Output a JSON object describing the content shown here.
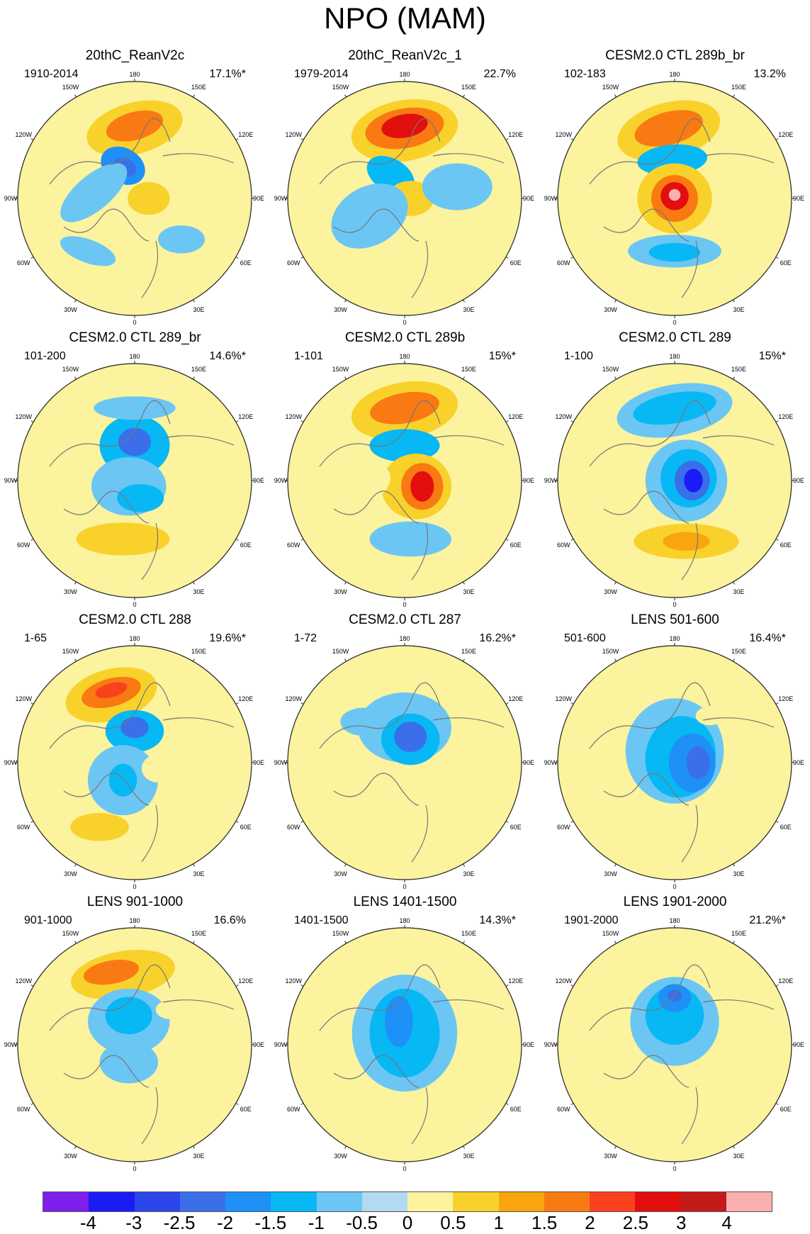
{
  "title": "NPO (MAM)",
  "lon_labels": [
    "180",
    "150E",
    "120E",
    "90E",
    "60E",
    "30E",
    "0",
    "30W",
    "60W",
    "90W",
    "120W",
    "150W"
  ],
  "colorbar": {
    "colors": [
      "#7f1fee",
      "#1b1bf5",
      "#2b46e8",
      "#3a6fe9",
      "#1e90f7",
      "#07b8f5",
      "#6bc6f4",
      "#b2daf1",
      "#fbf39d",
      "#f9d12b",
      "#f9a50e",
      "#f97a12",
      "#f9411e",
      "#e30e0e",
      "#c41a1a",
      "#fbb0b0"
    ],
    "ticks": [
      "-4",
      "-3",
      "-2.5",
      "-2",
      "-1.5",
      "-1",
      "-0.5",
      "0",
      "0.5",
      "1",
      "1.5",
      "2",
      "2.5",
      "3",
      "4"
    ]
  },
  "panels": [
    {
      "title": "20thC_ReanV2c",
      "period": "1910-2014",
      "pct": "17.1%*",
      "blobs": [
        [
          0,
          -0.6,
          0.42,
          0.22,
          -15,
          2
        ],
        [
          0,
          -0.62,
          0.25,
          0.12,
          -15,
          4
        ],
        [
          -0.1,
          -0.28,
          0.2,
          0.15,
          30,
          -3
        ],
        [
          -0.08,
          -0.27,
          0.1,
          0.07,
          30,
          -4
        ],
        [
          -0.35,
          -0.05,
          0.35,
          0.15,
          -40,
          -1
        ],
        [
          0.12,
          0.0,
          0.18,
          0.14,
          0,
          2
        ],
        [
          0.05,
          0.3,
          0.14,
          0.1,
          0,
          1
        ],
        [
          -0.4,
          0.45,
          0.25,
          0.1,
          20,
          -1
        ],
        [
          0.4,
          0.35,
          0.2,
          0.12,
          0,
          -1
        ]
      ]
    },
    {
      "title": "20thC_ReanV2c_1",
      "period": "1979-2014",
      "pct": "22.7%",
      "blobs": [
        [
          0,
          -0.58,
          0.46,
          0.26,
          -10,
          2
        ],
        [
          0,
          -0.6,
          0.34,
          0.17,
          -10,
          4
        ],
        [
          0,
          -0.62,
          0.2,
          0.1,
          -10,
          6
        ],
        [
          -0.12,
          -0.2,
          0.22,
          0.14,
          30,
          -2
        ],
        [
          0.05,
          0.0,
          0.2,
          0.15,
          0,
          2
        ],
        [
          -0.3,
          0.15,
          0.35,
          0.25,
          -30,
          -1
        ],
        [
          0.45,
          -0.1,
          0.3,
          0.2,
          0,
          -1
        ],
        [
          0.25,
          0.35,
          0.2,
          0.15,
          0,
          1
        ]
      ]
    },
    {
      "title": "CESM2.0 CTL 289b_br",
      "period": "102-183",
      "pct": "13.2%",
      "blobs": [
        [
          -0.05,
          -0.58,
          0.45,
          0.24,
          -15,
          2
        ],
        [
          -0.05,
          -0.6,
          0.3,
          0.14,
          -15,
          4
        ],
        [
          -0.02,
          -0.33,
          0.3,
          0.13,
          -5,
          -2
        ],
        [
          0,
          0.0,
          0.32,
          0.3,
          0,
          2
        ],
        [
          0,
          0.0,
          0.2,
          0.2,
          0,
          4
        ],
        [
          0,
          -0.02,
          0.12,
          0.12,
          0,
          6
        ],
        [
          0,
          -0.03,
          0.05,
          0.05,
          0,
          7
        ],
        [
          0,
          0.45,
          0.4,
          0.14,
          0,
          -1
        ],
        [
          0,
          0.46,
          0.22,
          0.08,
          0,
          -2
        ]
      ]
    },
    {
      "title": "CESM2.0 CTL 289_br",
      "period": "101-200",
      "pct": "14.6%*",
      "blobs": [
        [
          0,
          -0.3,
          0.3,
          0.26,
          0,
          -2
        ],
        [
          0,
          -0.33,
          0.14,
          0.12,
          0,
          -4
        ],
        [
          -0.05,
          0.05,
          0.32,
          0.25,
          0,
          -1
        ],
        [
          0.05,
          0.15,
          0.2,
          0.12,
          0,
          -2
        ],
        [
          -0.1,
          0.5,
          0.4,
          0.14,
          0,
          2
        ],
        [
          0,
          -0.62,
          0.35,
          0.1,
          0,
          -1
        ]
      ]
    },
    {
      "title": "CESM2.0 CTL 289b",
      "period": "1-101",
      "pct": "15%*",
      "blobs": [
        [
          0,
          -0.6,
          0.46,
          0.24,
          -10,
          2
        ],
        [
          0,
          -0.62,
          0.3,
          0.13,
          -10,
          4
        ],
        [
          0,
          -0.3,
          0.3,
          0.14,
          0,
          -2
        ],
        [
          0.1,
          0.05,
          0.3,
          0.28,
          0,
          2
        ],
        [
          0.15,
          0.05,
          0.18,
          0.2,
          0,
          4
        ],
        [
          0.15,
          0.05,
          0.1,
          0.13,
          0,
          6
        ],
        [
          -0.35,
          0.05,
          0.25,
          0.15,
          -30,
          1
        ],
        [
          0.05,
          0.5,
          0.35,
          0.15,
          0,
          -1
        ]
      ]
    },
    {
      "title": "CESM2.0 CTL 289",
      "period": "1-100",
      "pct": "15%*",
      "blobs": [
        [
          0,
          -0.6,
          0.5,
          0.22,
          -10,
          -1
        ],
        [
          0,
          -0.62,
          0.36,
          0.13,
          -10,
          -2
        ],
        [
          0.1,
          0.0,
          0.35,
          0.35,
          0,
          -1
        ],
        [
          0.12,
          -0.02,
          0.24,
          0.25,
          0,
          -2
        ],
        [
          0.15,
          0.0,
          0.15,
          0.17,
          0,
          -4
        ],
        [
          0.16,
          0.0,
          0.08,
          0.1,
          0,
          -6
        ],
        [
          0.1,
          0.52,
          0.45,
          0.15,
          0,
          2
        ],
        [
          0.1,
          0.52,
          0.2,
          0.08,
          0,
          3
        ],
        [
          -0.45,
          0.0,
          0.15,
          0.25,
          0,
          1
        ]
      ]
    },
    {
      "title": "CESM2.0 CTL 288",
      "period": "1-65",
      "pct": "19.6%*",
      "blobs": [
        [
          -0.2,
          -0.58,
          0.4,
          0.22,
          -15,
          2
        ],
        [
          -0.2,
          -0.6,
          0.26,
          0.12,
          -15,
          4
        ],
        [
          -0.2,
          -0.62,
          0.14,
          0.06,
          -15,
          5
        ],
        [
          0,
          -0.27,
          0.25,
          0.18,
          0,
          -2
        ],
        [
          0,
          -0.3,
          0.12,
          0.09,
          0,
          -4
        ],
        [
          -0.1,
          0.15,
          0.3,
          0.3,
          0,
          -1
        ],
        [
          -0.1,
          0.15,
          0.12,
          0.14,
          0,
          -2
        ],
        [
          0.2,
          0.05,
          0.14,
          0.12,
          0,
          1
        ],
        [
          -0.3,
          0.55,
          0.25,
          0.12,
          0,
          2
        ]
      ]
    },
    {
      "title": "CESM2.0 CTL 287",
      "period": "1-72",
      "pct": "16.2%*",
      "blobs": [
        [
          0,
          -0.3,
          0.4,
          0.3,
          0,
          -1
        ],
        [
          0.05,
          -0.2,
          0.25,
          0.22,
          0,
          -2
        ],
        [
          0.05,
          -0.22,
          0.14,
          0.13,
          0,
          -4
        ],
        [
          -0.35,
          -0.35,
          0.2,
          0.12,
          0,
          -1
        ],
        [
          0.1,
          0.55,
          0.25,
          0.12,
          0,
          1
        ],
        [
          0,
          -0.8,
          0.15,
          0.1,
          0,
          1
        ]
      ]
    },
    {
      "title": "LENS 501-600",
      "period": "501-600",
      "pct": "16.4%*",
      "blobs": [
        [
          0,
          -0.1,
          0.42,
          0.45,
          0,
          -1
        ],
        [
          0.05,
          -0.05,
          0.3,
          0.35,
          10,
          -2
        ],
        [
          0.15,
          0.0,
          0.2,
          0.25,
          0,
          -3
        ],
        [
          0.2,
          0.0,
          0.1,
          0.14,
          0,
          -4
        ],
        [
          -0.6,
          -0.7,
          0.2,
          0.1,
          -30,
          1
        ],
        [
          0.3,
          -0.4,
          0.12,
          0.08,
          0,
          1
        ],
        [
          0.05,
          0.5,
          0.3,
          0.12,
          0,
          1
        ]
      ]
    },
    {
      "title": "LENS 901-1000",
      "period": "901-1000",
      "pct": "16.6%",
      "blobs": [
        [
          -0.1,
          -0.6,
          0.45,
          0.2,
          -10,
          2
        ],
        [
          -0.2,
          -0.62,
          0.24,
          0.1,
          -10,
          4
        ],
        [
          -0.05,
          -0.2,
          0.35,
          0.28,
          0,
          -1
        ],
        [
          -0.05,
          -0.25,
          0.2,
          0.16,
          0,
          -2
        ],
        [
          -0.05,
          0.15,
          0.25,
          0.18,
          0,
          -1
        ],
        [
          0.3,
          -0.3,
          0.12,
          0.08,
          0,
          1
        ]
      ]
    },
    {
      "title": "LENS 1401-1500",
      "period": "1401-1500",
      "pct": "14.3%*",
      "blobs": [
        [
          0,
          -0.1,
          0.45,
          0.5,
          0,
          -1
        ],
        [
          0,
          -0.1,
          0.3,
          0.38,
          0,
          -2
        ],
        [
          -0.05,
          -0.2,
          0.12,
          0.22,
          0,
          -3
        ],
        [
          0,
          0.6,
          0.2,
          0.1,
          0,
          1
        ]
      ]
    },
    {
      "title": "LENS 1901-2000",
      "period": "1901-2000",
      "pct": "21.2%*",
      "blobs": [
        [
          -0.35,
          -0.7,
          0.2,
          0.08,
          -10,
          1
        ],
        [
          0,
          -0.2,
          0.38,
          0.38,
          0,
          -1
        ],
        [
          0,
          -0.25,
          0.25,
          0.25,
          0,
          -2
        ],
        [
          0,
          -0.4,
          0.14,
          0.12,
          0,
          -3
        ],
        [
          0,
          -0.42,
          0.06,
          0.05,
          0,
          -4
        ],
        [
          0.1,
          0.65,
          0.3,
          0.1,
          0,
          1
        ]
      ]
    }
  ]
}
